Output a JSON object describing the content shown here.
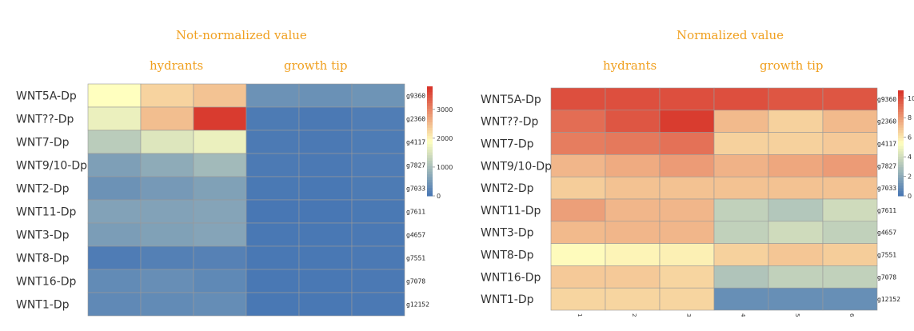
{
  "colors": {
    "title": "#f0a020",
    "low": "#4575b4",
    "mid": "#ffffbf",
    "high": "#d73027",
    "grid": "#999999"
  },
  "chart_data": [
    {
      "type": "heatmap",
      "title": "Not-normalized value",
      "groups": [
        "hydrants",
        "growth tip"
      ],
      "rows": [
        "WNT5A-Dp",
        "WNT??-Dp",
        "WNT7-Dp",
        "WNT9/10-Dp",
        "WNT2-Dp",
        "WNT11-Dp",
        "WNT3-Dp",
        "WNT8-Dp",
        "WNT16-Dp",
        "WNT1-Dp"
      ],
      "genes": [
        "g9360",
        "g2360",
        "g4117",
        "g7827",
        "g7033",
        "g7611",
        "g4657",
        "g7551",
        "g7078",
        "g12152"
      ],
      "columns": [
        "",
        "",
        "",
        "",
        "",
        ""
      ],
      "colorbar": {
        "min": 0,
        "max": 3800,
        "ticks": [
          0,
          1000,
          2000,
          3000
        ]
      },
      "values": [
        [
          1900,
          2300,
          2450,
          400,
          380,
          420
        ],
        [
          1700,
          2500,
          3700,
          80,
          60,
          110
        ],
        [
          1200,
          1550,
          1700,
          70,
          60,
          90
        ],
        [
          580,
          750,
          950,
          70,
          60,
          100
        ],
        [
          400,
          500,
          600,
          50,
          40,
          80
        ],
        [
          620,
          620,
          650,
          30,
          30,
          50
        ],
        [
          550,
          600,
          650,
          40,
          40,
          60
        ],
        [
          100,
          150,
          170,
          40,
          40,
          60
        ],
        [
          300,
          350,
          270,
          40,
          40,
          60
        ],
        [
          280,
          300,
          330,
          40,
          40,
          60
        ]
      ]
    },
    {
      "type": "heatmap",
      "title": "Normalized value",
      "groups": [
        "hydrants",
        "growth tip"
      ],
      "rows": [
        "WNT5A-Dp",
        "WNT??-Dp",
        "WNT7-Dp",
        "WNT9/10-Dp",
        "WNT2-Dp",
        "WNT11-Dp",
        "WNT3-Dp",
        "WNT8-Dp",
        "WNT16-Dp",
        "WNT1-Dp"
      ],
      "genes": [
        "g9360",
        "g2360",
        "g4117",
        "g7827",
        "g7033",
        "g7611",
        "g4657",
        "g7551",
        "g7078",
        "g12152"
      ],
      "columns": [
        "1",
        "2",
        "3",
        "4",
        "5",
        "6"
      ],
      "colorbar": {
        "min": 0,
        "max": 10.8,
        "ticks": [
          0,
          2,
          4,
          6,
          8,
          10
        ]
      },
      "values": [
        [
          10,
          10,
          10,
          10,
          9.8,
          9.8
        ],
        [
          9.2,
          9.8,
          10.5,
          7.2,
          6.6,
          7.2
        ],
        [
          8.8,
          8.9,
          9.1,
          6.6,
          6.6,
          6.8
        ],
        [
          7.3,
          7.6,
          8.0,
          7.4,
          7.7,
          8.0
        ],
        [
          6.7,
          7.0,
          7.0,
          7.0,
          7.0,
          7.0
        ],
        [
          7.9,
          7.3,
          7.3,
          3.6,
          3.2,
          4.0
        ],
        [
          7.2,
          7.3,
          7.3,
          3.6,
          4.0,
          3.6
        ],
        [
          5.5,
          5.7,
          5.8,
          6.6,
          6.9,
          6.7
        ],
        [
          6.8,
          6.8,
          6.5,
          3.1,
          3.6,
          3.6
        ],
        [
          6.5,
          6.5,
          6.5,
          1.0,
          1.0,
          1.0
        ]
      ]
    }
  ]
}
